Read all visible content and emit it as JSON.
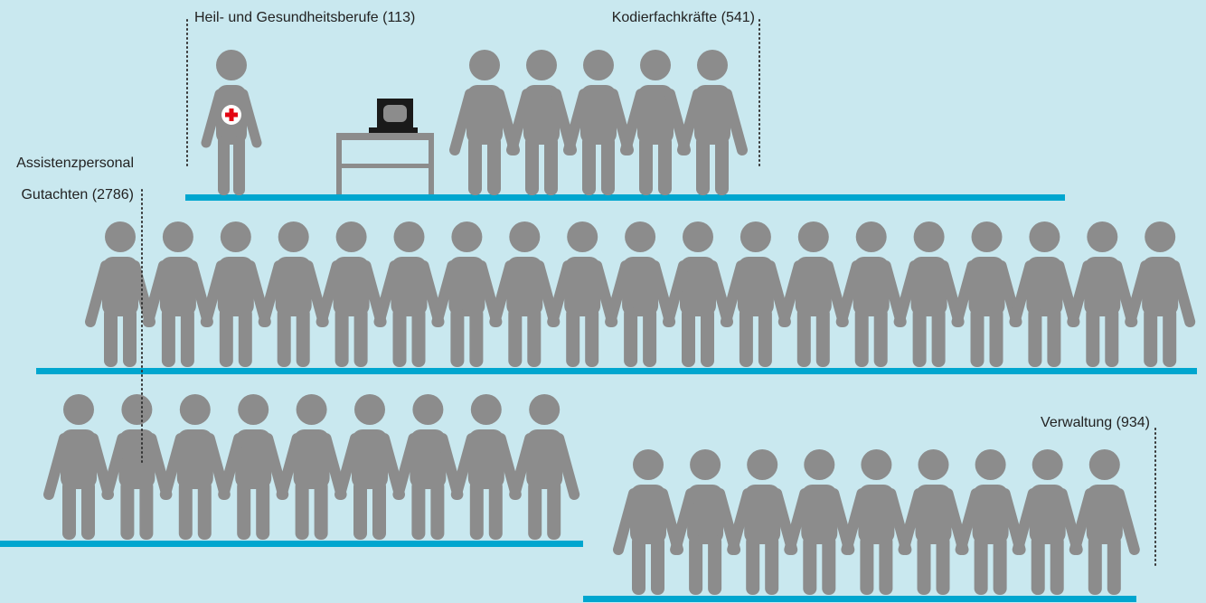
{
  "groups": [
    {
      "label": [
        "Heil- und Gesundheitsberufe (113)"
      ]
    },
    {
      "label": [
        "Kodierfachkräfte (541)"
      ]
    },
    {
      "label": [
        "Assistenzpersonal",
        "Gutachten (2786)"
      ]
    },
    {
      "label": [
        "Verwaltung (934)"
      ]
    }
  ]
}
